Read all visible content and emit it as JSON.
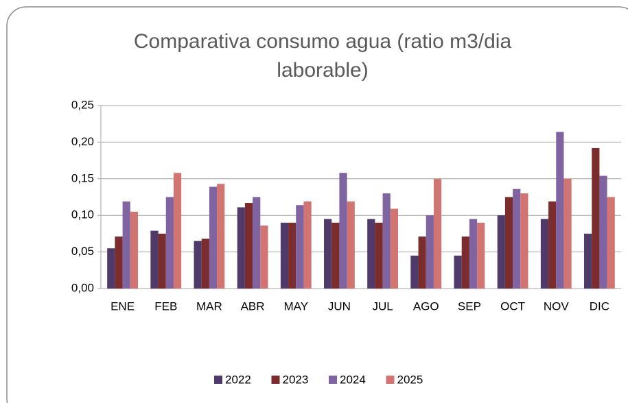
{
  "chart_data": {
    "type": "bar",
    "title": "Comparativa consumo agua (ratio m3/dia laborable)",
    "categories": [
      "ENE",
      "FEB",
      "MAR",
      "ABR",
      "MAY",
      "JUN",
      "JUL",
      "AGO",
      "SEP",
      "OCT",
      "NOV",
      "DIC"
    ],
    "series": [
      {
        "name": "2022",
        "color": "#4e3b6a",
        "values": [
          0.055,
          0.079,
          0.065,
          0.111,
          0.09,
          0.095,
          0.095,
          0.045,
          0.045,
          0.1,
          0.095,
          0.075
        ]
      },
      {
        "name": "2023",
        "color": "#7b2c2c",
        "values": [
          0.071,
          0.075,
          0.068,
          0.117,
          0.09,
          0.09,
          0.09,
          0.071,
          0.071,
          0.125,
          0.119,
          0.192
        ]
      },
      {
        "name": "2024",
        "color": "#8064a2",
        "values": [
          0.119,
          0.125,
          0.139,
          0.125,
          0.114,
          0.158,
          0.13,
          0.1,
          0.095,
          0.136,
          0.214,
          0.154
        ]
      },
      {
        "name": "2025",
        "color": "#d07572",
        "values": [
          0.105,
          0.158,
          0.143,
          0.086,
          0.119,
          0.119,
          0.109,
          0.15,
          0.09,
          0.13,
          0.15,
          0.125
        ]
      }
    ],
    "ylim": [
      0,
      0.25
    ],
    "yticks": [
      {
        "value": 0,
        "label": "0,00"
      },
      {
        "value": 0.05,
        "label": "0,05"
      },
      {
        "value": 0.1,
        "label": "0,10"
      },
      {
        "value": 0.15,
        "label": "0,15"
      },
      {
        "value": 0.2,
        "label": "0,20"
      },
      {
        "value": 0.25,
        "label": "0,25"
      }
    ],
    "grid": true,
    "legend": "bottom"
  }
}
